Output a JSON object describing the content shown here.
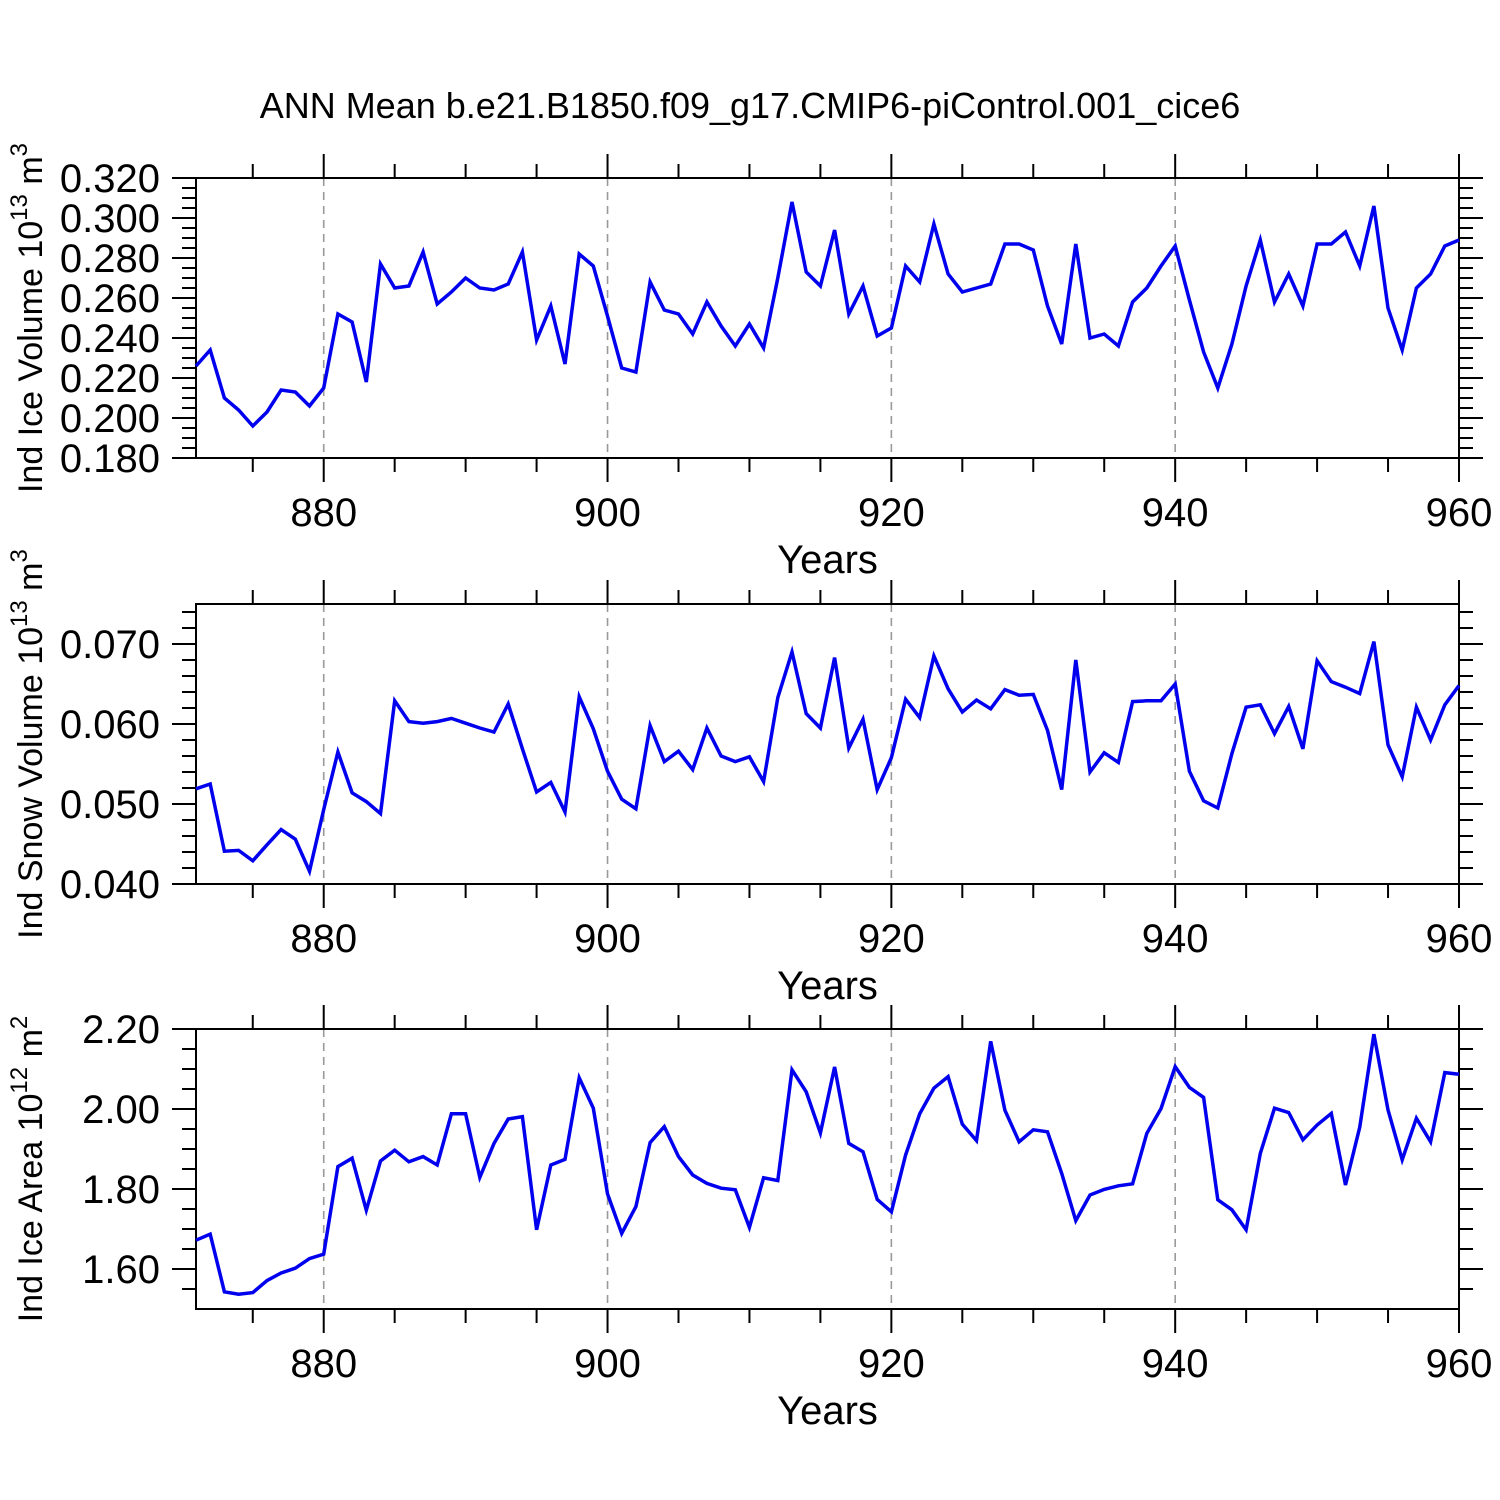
{
  "title": "ANN Mean b.e21.B1850.f09_g17.CMIP6-piControl.001_cice6",
  "styles": {
    "line_color": "#0000ee",
    "grid_color": "#999999",
    "axis_color": "#000000",
    "text_color": "#000000",
    "background": "#ffffff"
  },
  "chart_data": [
    {
      "type": "line",
      "xlabel": "Years",
      "ylabel_plain": "Ind Ice Volume 10^13 m^3",
      "ylabel_segments": [
        {
          "t": "Ind Ice Volume 10",
          "sup": false
        },
        {
          "t": "13",
          "sup": true
        },
        {
          "t": " m",
          "sup": false
        },
        {
          "t": "3",
          "sup": true
        }
      ],
      "x_start": 871,
      "x_end": 960,
      "x_step": 1,
      "x_major_ticks": [
        880,
        900,
        920,
        940,
        960
      ],
      "x_minor_step": 5,
      "x_gridlines": [
        880,
        900,
        920,
        940
      ],
      "ylim": [
        0.18,
        0.32
      ],
      "y_major_ticks": [
        0.18,
        0.2,
        0.22,
        0.24,
        0.26,
        0.28,
        0.3,
        0.32
      ],
      "y_tick_labels": [
        "0.180",
        "0.200",
        "0.220",
        "0.240",
        "0.260",
        "0.280",
        "0.300",
        "0.320"
      ],
      "y_minor_step": 0.005,
      "grid": "x-dashed",
      "legend": "none",
      "values": [
        0.226,
        0.234,
        0.21,
        0.204,
        0.196,
        0.203,
        0.214,
        0.213,
        0.206,
        0.215,
        0.252,
        0.248,
        0.218,
        0.277,
        0.265,
        0.266,
        0.283,
        0.257,
        0.263,
        0.27,
        0.265,
        0.264,
        0.267,
        0.283,
        0.239,
        0.256,
        0.227,
        0.282,
        0.276,
        0.251,
        0.225,
        0.223,
        0.268,
        0.254,
        0.252,
        0.242,
        0.258,
        0.246,
        0.236,
        0.247,
        0.235,
        0.27,
        0.308,
        0.273,
        0.266,
        0.294,
        0.252,
        0.266,
        0.241,
        0.245,
        0.276,
        0.268,
        0.297,
        0.272,
        0.263,
        0.265,
        0.267,
        0.287,
        0.287,
        0.284,
        0.256,
        0.237,
        0.287,
        0.24,
        0.242,
        0.236,
        0.258,
        0.265,
        0.276,
        0.286,
        0.259,
        0.233,
        0.215,
        0.237,
        0.266,
        0.289,
        0.258,
        0.272,
        0.256,
        0.287,
        0.287,
        0.293,
        0.276,
        0.306,
        0.255,
        0.234,
        0.265,
        0.272,
        0.286,
        0.289
      ]
    },
    {
      "type": "line",
      "xlabel": "Years",
      "ylabel_plain": "Ind Snow Volume 10^13 m^3",
      "ylabel_segments": [
        {
          "t": "Ind Snow Volume 10",
          "sup": false
        },
        {
          "t": "13",
          "sup": true
        },
        {
          "t": " m",
          "sup": false
        },
        {
          "t": "3",
          "sup": true
        }
      ],
      "x_start": 871,
      "x_end": 960,
      "x_step": 1,
      "x_major_ticks": [
        880,
        900,
        920,
        940,
        960
      ],
      "x_minor_step": 5,
      "x_gridlines": [
        880,
        900,
        920,
        940
      ],
      "ylim": [
        0.04,
        0.075
      ],
      "y_major_ticks": [
        0.04,
        0.05,
        0.06,
        0.07
      ],
      "y_tick_labels": [
        "0.040",
        "0.050",
        "0.060",
        "0.070"
      ],
      "y_minor_step": 0.002,
      "grid": "x-dashed",
      "legend": "none",
      "values": [
        0.0519,
        0.0525,
        0.0441,
        0.0442,
        0.0429,
        0.0449,
        0.0468,
        0.0456,
        0.0416,
        0.0493,
        0.0565,
        0.0514,
        0.0503,
        0.0488,
        0.0629,
        0.0603,
        0.0601,
        0.0603,
        0.0607,
        0.0601,
        0.0595,
        0.059,
        0.0625,
        0.0569,
        0.0515,
        0.0527,
        0.049,
        0.0634,
        0.0594,
        0.0541,
        0.0506,
        0.0494,
        0.0598,
        0.0553,
        0.0566,
        0.0543,
        0.0595,
        0.056,
        0.0553,
        0.0559,
        0.0528,
        0.0633,
        0.069,
        0.0613,
        0.0595,
        0.0683,
        0.057,
        0.0606,
        0.0518,
        0.0558,
        0.0631,
        0.0608,
        0.0685,
        0.0644,
        0.0615,
        0.063,
        0.0619,
        0.0643,
        0.0636,
        0.0637,
        0.0592,
        0.0518,
        0.068,
        0.054,
        0.0564,
        0.0552,
        0.0628,
        0.0629,
        0.0629,
        0.065,
        0.0541,
        0.0504,
        0.0495,
        0.0563,
        0.0621,
        0.0624,
        0.0588,
        0.0622,
        0.0569,
        0.0679,
        0.0653,
        0.0646,
        0.0638,
        0.0703,
        0.0574,
        0.0534,
        0.0621,
        0.058,
        0.0624,
        0.0648
      ]
    },
    {
      "type": "line",
      "xlabel": "Years",
      "ylabel_plain": "Ind Ice Area 10^12 m^2",
      "ylabel_segments": [
        {
          "t": "Ind Ice Area 10",
          "sup": false
        },
        {
          "t": "12",
          "sup": true
        },
        {
          "t": " m",
          "sup": false
        },
        {
          "t": "2",
          "sup": true
        }
      ],
      "x_start": 871,
      "x_end": 960,
      "x_step": 1,
      "x_major_ticks": [
        880,
        900,
        920,
        940,
        960
      ],
      "x_minor_step": 5,
      "x_gridlines": [
        880,
        900,
        920,
        940
      ],
      "ylim": [
        1.5,
        2.2
      ],
      "y_major_ticks": [
        1.6,
        1.8,
        2.0,
        2.2
      ],
      "y_tick_labels": [
        "1.60",
        "1.80",
        "2.00",
        "2.20"
      ],
      "y_minor_step": 0.05,
      "grid": "x-dashed",
      "legend": "none",
      "values": [
        1.672,
        1.687,
        1.543,
        1.537,
        1.541,
        1.571,
        1.59,
        1.602,
        1.626,
        1.637,
        1.856,
        1.877,
        1.747,
        1.87,
        1.897,
        1.868,
        1.881,
        1.86,
        1.988,
        1.988,
        1.829,
        1.914,
        1.975,
        1.981,
        1.698,
        1.86,
        1.874,
        2.078,
        2.002,
        1.788,
        1.689,
        1.756,
        1.916,
        1.956,
        1.881,
        1.835,
        1.814,
        1.802,
        1.798,
        1.704,
        1.828,
        1.821,
        2.098,
        2.043,
        1.94,
        2.105,
        1.914,
        1.893,
        1.774,
        1.743,
        1.885,
        1.988,
        2.052,
        2.081,
        1.962,
        1.921,
        2.169,
        1.997,
        1.918,
        1.948,
        1.943,
        1.839,
        1.721,
        1.785,
        1.799,
        1.808,
        1.813,
        1.939,
        2.001,
        2.106,
        2.054,
        2.029,
        1.773,
        1.748,
        1.698,
        1.889,
        2.002,
        1.991,
        1.923,
        1.96,
        1.989,
        1.81,
        1.954,
        2.187,
        1.998,
        1.873,
        1.977,
        1.918,
        2.091,
        2.087
      ]
    }
  ]
}
